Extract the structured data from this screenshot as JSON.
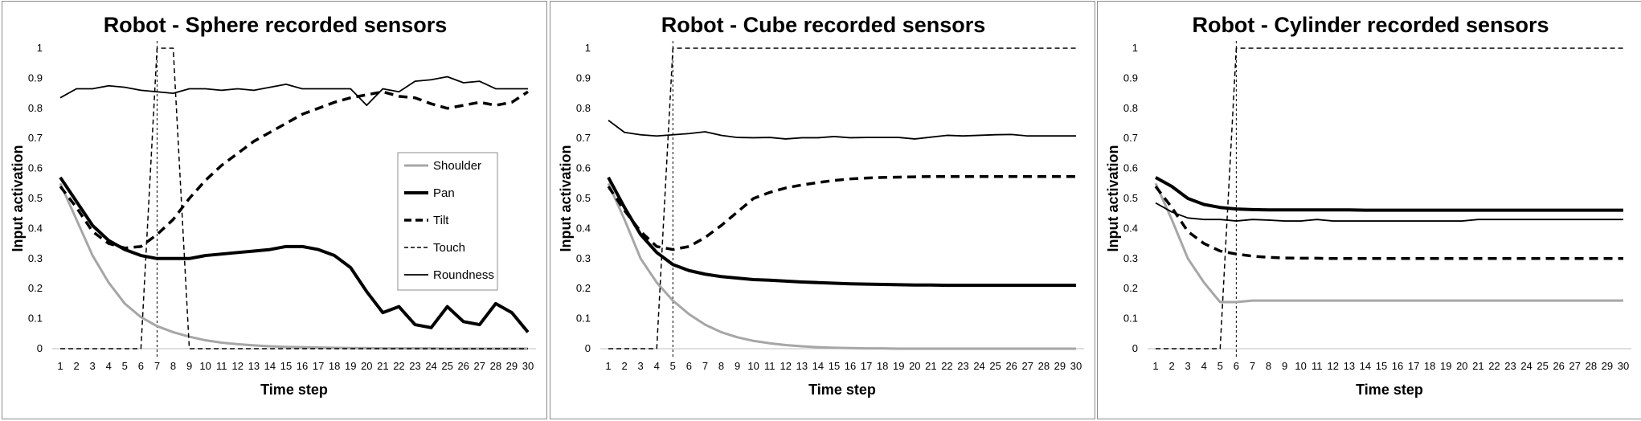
{
  "chart_data": [
    {
      "type": "line",
      "title": "Robot - Sphere recorded sensors",
      "xlabel": "Time step",
      "ylabel": "Input activation",
      "ylim": [
        0,
        1
      ],
      "yticks": [
        "0",
        "0.1",
        "0.2",
        "0.3",
        "0.4",
        "0.5",
        "0.6",
        "0.7",
        "0.8",
        "0.9",
        "1"
      ],
      "categories": [
        "1",
        "2",
        "3",
        "4",
        "5",
        "6",
        "7",
        "8",
        "9",
        "10",
        "11",
        "12",
        "13",
        "14",
        "15",
        "16",
        "17",
        "18",
        "19",
        "20",
        "21",
        "22",
        "23",
        "24",
        "25",
        "26",
        "27",
        "28",
        "29",
        "30"
      ],
      "marker_x": 7,
      "legend_position": "inside-right",
      "series": [
        {
          "name": "Shoulder",
          "color": "#a6a6a6",
          "style": "solid",
          "width": 3,
          "values": [
            0.55,
            0.43,
            0.31,
            0.22,
            0.15,
            0.105,
            0.075,
            0.055,
            0.04,
            0.028,
            0.02,
            0.015,
            0.011,
            0.008,
            0.006,
            0.005,
            0.004,
            0.003,
            0.002,
            0.002,
            0.001,
            0.001,
            0.001,
            0.001,
            0.0,
            0.0,
            0.0,
            0.0,
            0.0,
            0.0
          ]
        },
        {
          "name": "Pan",
          "color": "#000000",
          "style": "solid",
          "width": 4,
          "values": [
            0.57,
            0.49,
            0.41,
            0.36,
            0.33,
            0.31,
            0.3,
            0.3,
            0.3,
            0.31,
            0.315,
            0.32,
            0.325,
            0.33,
            0.34,
            0.34,
            0.33,
            0.31,
            0.27,
            0.19,
            0.12,
            0.14,
            0.08,
            0.07,
            0.14,
            0.09,
            0.08,
            0.15,
            0.12,
            0.055
          ]
        },
        {
          "name": "Tilt",
          "color": "#000000",
          "style": "dashed",
          "width": 3.5,
          "values": [
            0.54,
            0.47,
            0.39,
            0.35,
            0.335,
            0.34,
            0.38,
            0.43,
            0.5,
            0.56,
            0.61,
            0.65,
            0.69,
            0.72,
            0.75,
            0.78,
            0.8,
            0.82,
            0.835,
            0.845,
            0.855,
            0.84,
            0.835,
            0.815,
            0.8,
            0.81,
            0.82,
            0.81,
            0.82,
            0.855
          ]
        },
        {
          "name": "Touch",
          "color": "#000000",
          "style": "thin-dashed",
          "width": 1.5,
          "values": [
            0,
            0,
            0,
            0,
            0,
            0,
            1,
            1,
            0,
            0,
            0,
            0,
            0,
            0,
            0,
            0,
            0,
            0,
            0,
            0,
            0,
            0,
            0,
            0,
            0,
            0,
            0,
            0,
            0,
            0
          ]
        },
        {
          "name": "Roundness",
          "color": "#000000",
          "style": "solid",
          "width": 1.8,
          "values": [
            0.835,
            0.865,
            0.865,
            0.875,
            0.87,
            0.86,
            0.855,
            0.85,
            0.865,
            0.865,
            0.86,
            0.865,
            0.86,
            0.87,
            0.88,
            0.865,
            0.865,
            0.865,
            0.865,
            0.81,
            0.865,
            0.855,
            0.89,
            0.895,
            0.905,
            0.885,
            0.89,
            0.865,
            0.865,
            0.865
          ]
        }
      ]
    },
    {
      "type": "line",
      "title": "Robot - Cube recorded sensors",
      "xlabel": "Time step",
      "ylabel": "Input activation",
      "ylim": [
        0,
        1
      ],
      "yticks": [
        "0",
        "0.1",
        "0.2",
        "0.3",
        "0.4",
        "0.5",
        "0.6",
        "0.7",
        "0.8",
        "0.9",
        "1"
      ],
      "categories": [
        "1",
        "2",
        "3",
        "4",
        "5",
        "6",
        "7",
        "8",
        "9",
        "10",
        "11",
        "12",
        "13",
        "14",
        "15",
        "16",
        "17",
        "18",
        "19",
        "20",
        "21",
        "22",
        "23",
        "24",
        "25",
        "26",
        "27",
        "28",
        "29",
        "30"
      ],
      "marker_x": 5,
      "series": [
        {
          "name": "Shoulder",
          "color": "#a6a6a6",
          "style": "solid",
          "width": 3,
          "values": [
            0.55,
            0.43,
            0.3,
            0.22,
            0.16,
            0.115,
            0.08,
            0.055,
            0.038,
            0.026,
            0.018,
            0.012,
            0.008,
            0.005,
            0.003,
            0.002,
            0.001,
            0.001,
            0,
            0,
            0,
            0,
            0,
            0,
            0,
            0,
            0,
            0,
            0,
            0
          ]
        },
        {
          "name": "Pan",
          "color": "#000000",
          "style": "solid",
          "width": 4,
          "values": [
            0.57,
            0.47,
            0.38,
            0.32,
            0.28,
            0.26,
            0.248,
            0.24,
            0.235,
            0.23,
            0.228,
            0.225,
            0.222,
            0.22,
            0.218,
            0.216,
            0.215,
            0.214,
            0.213,
            0.212,
            0.212,
            0.211,
            0.211,
            0.211,
            0.211,
            0.211,
            0.211,
            0.211,
            0.211,
            0.211
          ]
        },
        {
          "name": "Tilt",
          "color": "#000000",
          "style": "dashed",
          "width": 3.5,
          "values": [
            0.54,
            0.46,
            0.39,
            0.34,
            0.33,
            0.34,
            0.37,
            0.41,
            0.455,
            0.5,
            0.52,
            0.535,
            0.545,
            0.553,
            0.56,
            0.565,
            0.568,
            0.57,
            0.571,
            0.572,
            0.573,
            0.573,
            0.573,
            0.573,
            0.573,
            0.573,
            0.573,
            0.573,
            0.573,
            0.573
          ]
        },
        {
          "name": "Touch",
          "color": "#000000",
          "style": "thin-dashed",
          "width": 1.5,
          "values": [
            0,
            0,
            0,
            0,
            1,
            1,
            1,
            1,
            1,
            1,
            1,
            1,
            1,
            1,
            1,
            1,
            1,
            1,
            1,
            1,
            1,
            1,
            1,
            1,
            1,
            1,
            1,
            1,
            1,
            1
          ]
        },
        {
          "name": "Roundness",
          "color": "#000000",
          "style": "solid",
          "width": 1.8,
          "values": [
            0.76,
            0.72,
            0.712,
            0.708,
            0.712,
            0.716,
            0.722,
            0.71,
            0.703,
            0.702,
            0.703,
            0.698,
            0.702,
            0.702,
            0.706,
            0.702,
            0.703,
            0.703,
            0.703,
            0.698,
            0.704,
            0.71,
            0.708,
            0.71,
            0.712,
            0.713,
            0.708,
            0.708,
            0.708,
            0.708
          ]
        }
      ]
    },
    {
      "type": "line",
      "title": "Robot - Cylinder recorded sensors",
      "xlabel": "Time step",
      "ylabel": "Input activation",
      "ylim": [
        0,
        1
      ],
      "yticks": [
        "0",
        "0.1",
        "0.2",
        "0.3",
        "0.4",
        "0.5",
        "0.6",
        "0.7",
        "0.8",
        "0.9",
        "1"
      ],
      "categories": [
        "1",
        "2",
        "3",
        "4",
        "5",
        "6",
        "7",
        "8",
        "9",
        "10",
        "11",
        "12",
        "13",
        "14",
        "15",
        "16",
        "17",
        "18",
        "19",
        "20",
        "21",
        "22",
        "23",
        "24",
        "25",
        "26",
        "27",
        "28",
        "29",
        "30"
      ],
      "marker_x": 6,
      "series": [
        {
          "name": "Shoulder",
          "color": "#a6a6a6",
          "style": "solid",
          "width": 3,
          "values": [
            0.55,
            0.43,
            0.3,
            0.22,
            0.155,
            0.155,
            0.16,
            0.16,
            0.16,
            0.16,
            0.16,
            0.16,
            0.16,
            0.16,
            0.16,
            0.16,
            0.16,
            0.16,
            0.16,
            0.16,
            0.16,
            0.16,
            0.16,
            0.16,
            0.16,
            0.16,
            0.16,
            0.16,
            0.16,
            0.16
          ]
        },
        {
          "name": "Pan",
          "color": "#000000",
          "style": "solid",
          "width": 4,
          "values": [
            0.57,
            0.54,
            0.5,
            0.48,
            0.47,
            0.465,
            0.463,
            0.462,
            0.462,
            0.462,
            0.462,
            0.462,
            0.462,
            0.461,
            0.461,
            0.461,
            0.461,
            0.461,
            0.461,
            0.461,
            0.461,
            0.461,
            0.461,
            0.461,
            0.461,
            0.461,
            0.461,
            0.461,
            0.461,
            0.461
          ]
        },
        {
          "name": "Tilt",
          "color": "#000000",
          "style": "dashed",
          "width": 3.5,
          "values": [
            0.54,
            0.47,
            0.39,
            0.35,
            0.325,
            0.315,
            0.308,
            0.304,
            0.302,
            0.301,
            0.301,
            0.3,
            0.3,
            0.3,
            0.3,
            0.3,
            0.3,
            0.3,
            0.3,
            0.3,
            0.3,
            0.3,
            0.3,
            0.3,
            0.3,
            0.3,
            0.3,
            0.3,
            0.3,
            0.3
          ]
        },
        {
          "name": "Touch",
          "color": "#000000",
          "style": "thin-dashed",
          "width": 1.5,
          "values": [
            0,
            0,
            0,
            0,
            0,
            1,
            1,
            1,
            1,
            1,
            1,
            1,
            1,
            1,
            1,
            1,
            1,
            1,
            1,
            1,
            1,
            1,
            1,
            1,
            1,
            1,
            1,
            1,
            1,
            1
          ]
        },
        {
          "name": "Roundness",
          "color": "#000000",
          "style": "solid",
          "width": 1.8,
          "values": [
            0.485,
            0.455,
            0.435,
            0.43,
            0.43,
            0.425,
            0.43,
            0.428,
            0.425,
            0.425,
            0.43,
            0.425,
            0.425,
            0.425,
            0.425,
            0.425,
            0.425,
            0.425,
            0.425,
            0.425,
            0.43,
            0.43,
            0.43,
            0.43,
            0.43,
            0.43,
            0.43,
            0.43,
            0.43,
            0.43
          ]
        }
      ]
    }
  ]
}
